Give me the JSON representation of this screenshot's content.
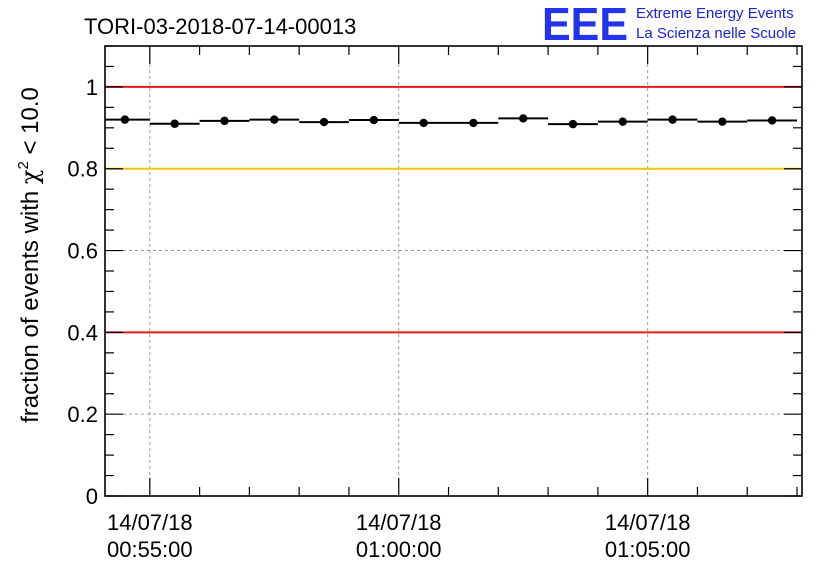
{
  "chart_data": {
    "type": "scatter",
    "title": "TORI-03-2018-07-14-00013",
    "ylabel": "fraction of events with χ² < 10.0",
    "ylabel_parts": {
      "prefix": "fraction of events with ",
      "chi": "χ",
      "sup": "2",
      "suffix": " < 10.0"
    },
    "xlabel": "",
    "xlim_minutes": [
      -0.9,
      13.1
    ],
    "ylim": [
      0,
      1.1
    ],
    "yticks": [
      0,
      0.2,
      0.4,
      0.6,
      0.8,
      1
    ],
    "ytick_labels": [
      "0",
      "0.2",
      "0.4",
      "0.6",
      "0.8",
      "1"
    ],
    "xticks_minutes": [
      0,
      5,
      10
    ],
    "xtick_labels": [
      {
        "date": "14/07/18",
        "time": "00:55:00"
      },
      {
        "date": "14/07/18",
        "time": "01:00:00"
      },
      {
        "date": "14/07/18",
        "time": "01:05:00"
      }
    ],
    "bin_width_minutes": 1,
    "x_minutes": [
      -0.5,
      0.5,
      1.5,
      2.5,
      3.5,
      4.5,
      5.5,
      6.5,
      7.5,
      8.5,
      9.5,
      10.5,
      11.5,
      12.5
    ],
    "values": [
      0.92,
      0.91,
      0.917,
      0.92,
      0.914,
      0.919,
      0.912,
      0.912,
      0.923,
      0.909,
      0.915,
      0.92,
      0.915,
      0.918
    ],
    "reference_lines": [
      {
        "value": 1.0,
        "color": "#e8191b"
      },
      {
        "value": 0.8,
        "color": "#f5c400"
      },
      {
        "value": 0.4,
        "color": "#e8191b"
      }
    ],
    "grid": true
  },
  "logo": {
    "letters": "EEE",
    "line1": "Extreme Energy Events",
    "line2": "La Scienza nelle Scuole",
    "color": "#2233ee"
  }
}
